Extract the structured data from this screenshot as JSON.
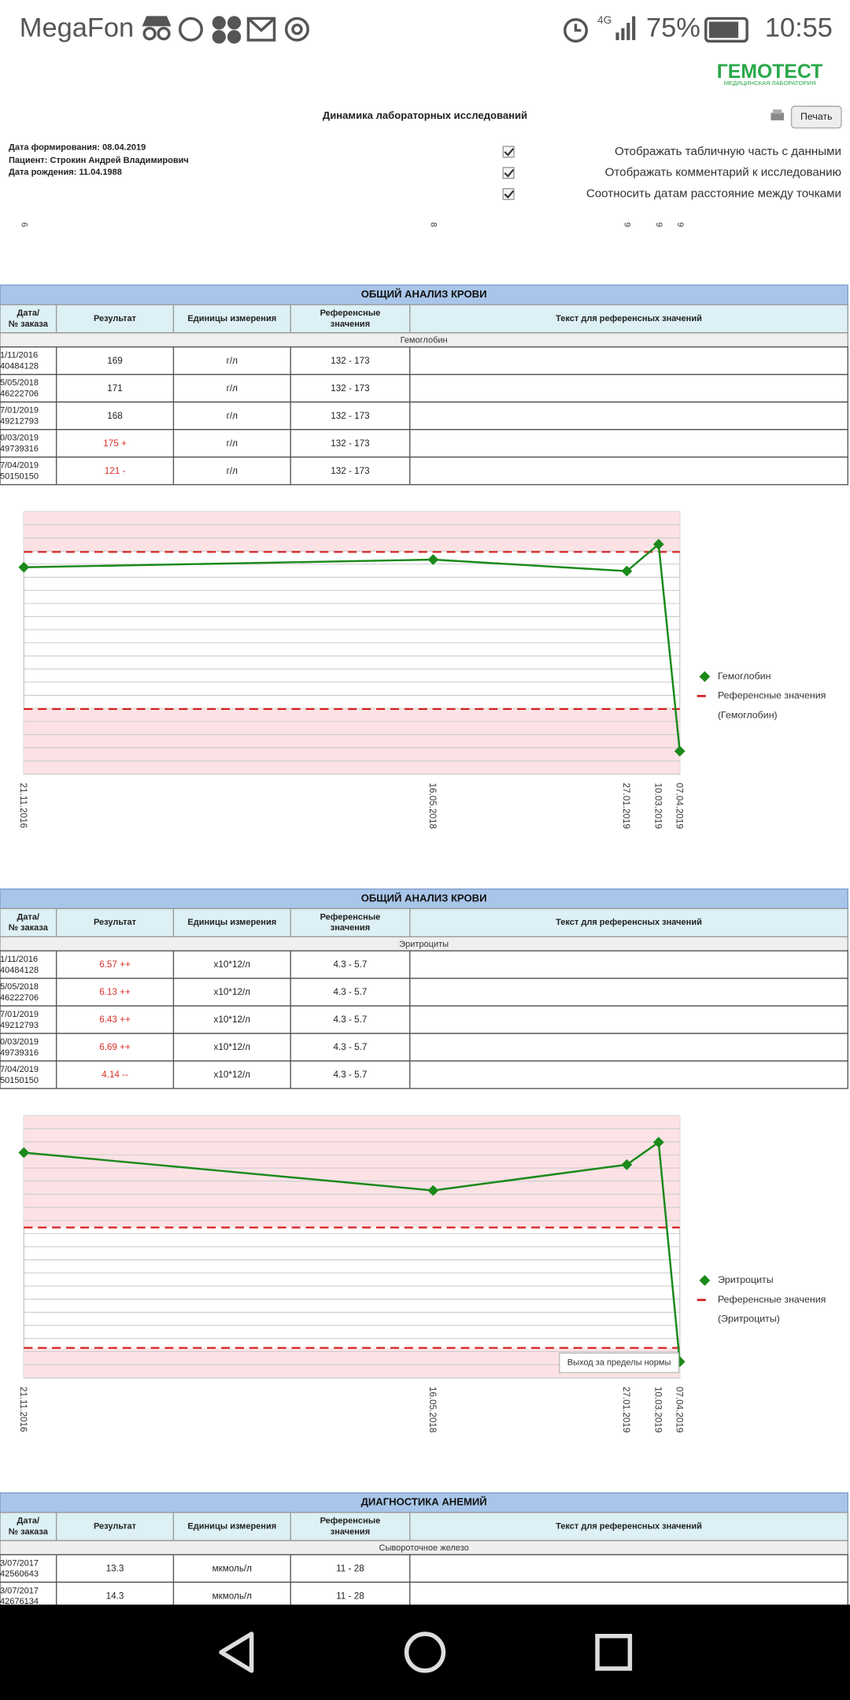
{
  "status_bar": {
    "carrier": "MegaFon",
    "network": "4G",
    "battery": "75%",
    "time": "10:55"
  },
  "header": {
    "logo": "ГЕМОТЕСТ",
    "logo_subtitle": "МЕДИЦИНСКАЯ ЛАБОРАТОРИЯ",
    "title": "Динамика лабораторных исследований",
    "print_button": "Печать"
  },
  "patient": {
    "report_date": "Дата формирования: 08.04.2019",
    "patient": "Пациент: Строкин Андрей Владимирович",
    "birth_date": "Дата рождения: 11.04.1988"
  },
  "options": [
    "Отображать табличную часть с данными",
    "Отображать комментарий к исследованию",
    "Соотносить датам расстояние между точками"
  ],
  "top_axis_labels": [
    "6",
    "8",
    "9",
    "9",
    "9"
  ],
  "sections": [
    {
      "title": "ОБЩИЙ АНАЛИЗ КРОВИ",
      "columns": [
        [
          "Дата/",
          "№ заказа"
        ],
        [
          "Результат"
        ],
        [
          "Единицы измерения"
        ],
        [
          "Референсные",
          "значения"
        ],
        [
          "Текст для референсных значений"
        ]
      ],
      "analyte": "Гемоглобин",
      "rows": [
        {
          "date": "1/11/2016",
          "order": "40484128",
          "result": 169,
          "units": "г/л",
          "range": "132 - 173"
        },
        {
          "date": "5/05/2018",
          "order": "46222706",
          "result": 171,
          "units": "г/л",
          "range": "132 - 173"
        },
        {
          "date": "7/01/2019",
          "order": "49212793",
          "result": 168,
          "units": "г/л",
          "range": "132 - 173"
        },
        {
          "date": "0/03/2019",
          "order": "49739316",
          "result": 175,
          "result_label": "175 +",
          "units": "г/л",
          "range": "132 - 173"
        },
        {
          "date": "7/04/2019",
          "order": "50150150",
          "result": 121,
          "result_label": "121 -",
          "units": "г/л",
          "range": "132 - 173"
        }
      ],
      "chart": {
        "type": "line",
        "x": [
          "21.11.2016",
          "16.05.2018",
          "27.01.2019",
          "10.03.2019",
          "07.04.2019"
        ],
        "ylim": [
          115,
          183.5
        ],
        "ref_low": 132,
        "ref_high": 173,
        "color": "#1a8a1a",
        "ref_color": "#d62020",
        "legend": [
          "Гемоглобин",
          "Референсные значения",
          "(Гемоглобин)"
        ]
      }
    },
    {
      "title": "ОБЩИЙ АНАЛИЗ КРОВИ",
      "columns": [
        [
          "Дата/",
          "№ заказа"
        ],
        [
          "Результат"
        ],
        [
          "Единицы измерения"
        ],
        [
          "Референсные",
          "значения"
        ],
        [
          "Текст для референсных значений"
        ]
      ],
      "analyte": "Эритроциты",
      "rows": [
        {
          "date": "1/11/2016",
          "order": "40484128",
          "result": 6.57,
          "result_label": "6.57 ++",
          "units": "x10*12/л",
          "range": "4.3 - 5.7"
        },
        {
          "date": "5/05/2018",
          "order": "46222706",
          "result": 6.13,
          "result_label": "6.13 ++",
          "units": "x10*12/л",
          "range": "4.3 - 5.7"
        },
        {
          "date": "7/01/2019",
          "order": "49212793",
          "result": 6.43,
          "result_label": "6.43 ++",
          "units": "x10*12/л",
          "range": "4.3 - 5.7"
        },
        {
          "date": "0/03/2019",
          "order": "49739316",
          "result": 6.69,
          "result_label": "6.69 ++",
          "units": "x10*12/л",
          "range": "4.3 - 5.7"
        },
        {
          "date": "7/04/2019",
          "order": "50150150",
          "result": 4.14,
          "result_label": "4.14 --",
          "units": "x10*12/л",
          "range": "4.3 - 5.7"
        }
      ],
      "chart": {
        "type": "line",
        "x": [
          "21.11.2016",
          "16.05.2018",
          "27.01.2019",
          "10.03.2019",
          "07.04.2019"
        ],
        "ylim": [
          3.95,
          7.0
        ],
        "ref_low": 4.3,
        "ref_high": 5.7,
        "color": "#1a8a1a",
        "ref_color": "#d62020",
        "legend": [
          "Эритроциты",
          "Референсные значения",
          "(Эритроциты)"
        ],
        "tooltip": "Выход за пределы нормы"
      }
    },
    {
      "title": "ДИАГНОСТИКА АНЕМИЙ",
      "columns": [
        [
          "Дата/",
          "№ заказа"
        ],
        [
          "Результат"
        ],
        [
          "Единицы измерения"
        ],
        [
          "Референсные",
          "значения"
        ],
        [
          "Текст для референсных значений"
        ]
      ],
      "analyte": "Сывороточное железо",
      "rows": [
        {
          "date": "3/07/2017",
          "order": "42560643",
          "result": 13.3,
          "units": "мкмоль/л",
          "range": "11 - 28"
        },
        {
          "date": "3/07/2017",
          "order": "42676134",
          "result": 14.3,
          "units": "мкмоль/л",
          "range": "11 - 28"
        }
      ]
    }
  ]
}
